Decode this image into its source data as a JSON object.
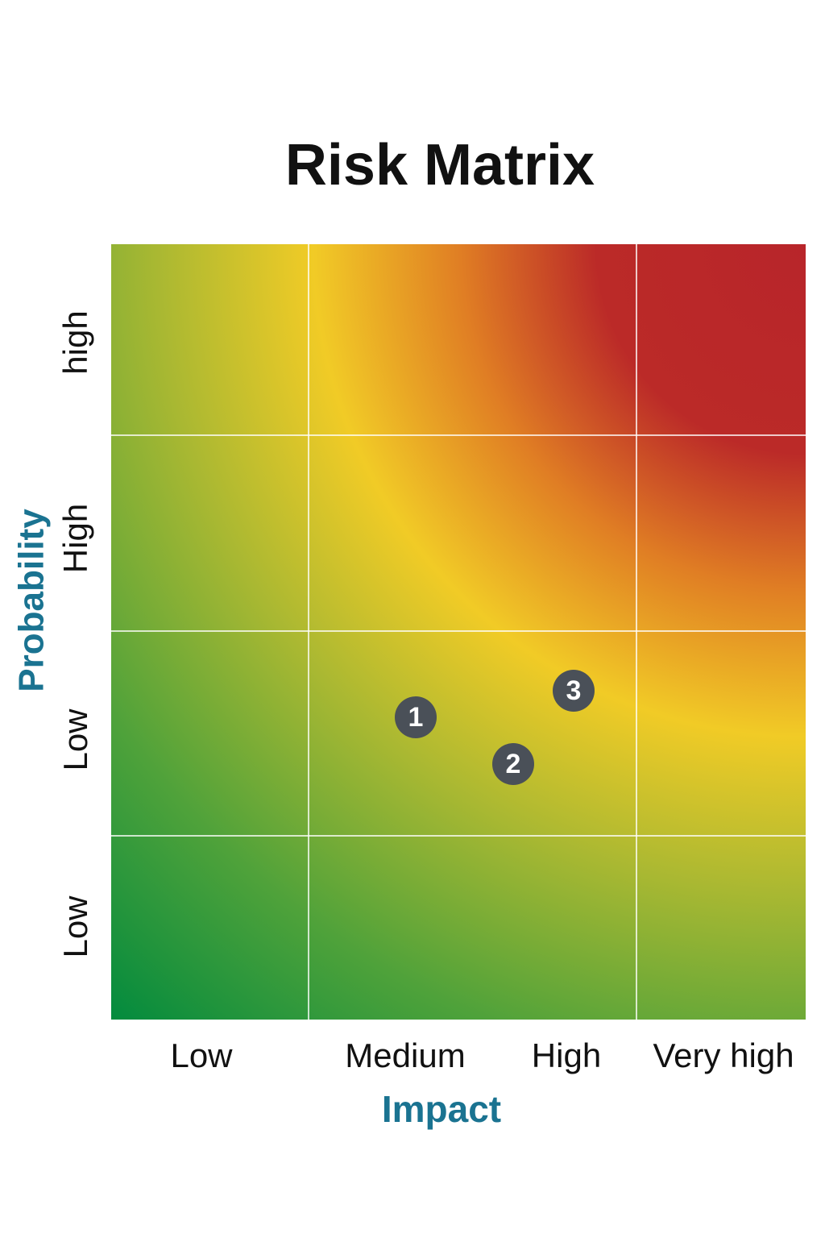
{
  "title": "Risk Matrix",
  "y_axis": {
    "title": "Probability",
    "labels": [
      "high",
      "High",
      "Low",
      "Low"
    ]
  },
  "x_axis": {
    "title": "Impact",
    "labels": [
      "Low",
      "Medium",
      "High",
      "Very high"
    ]
  },
  "markers": [
    "1",
    "2",
    "3"
  ]
}
